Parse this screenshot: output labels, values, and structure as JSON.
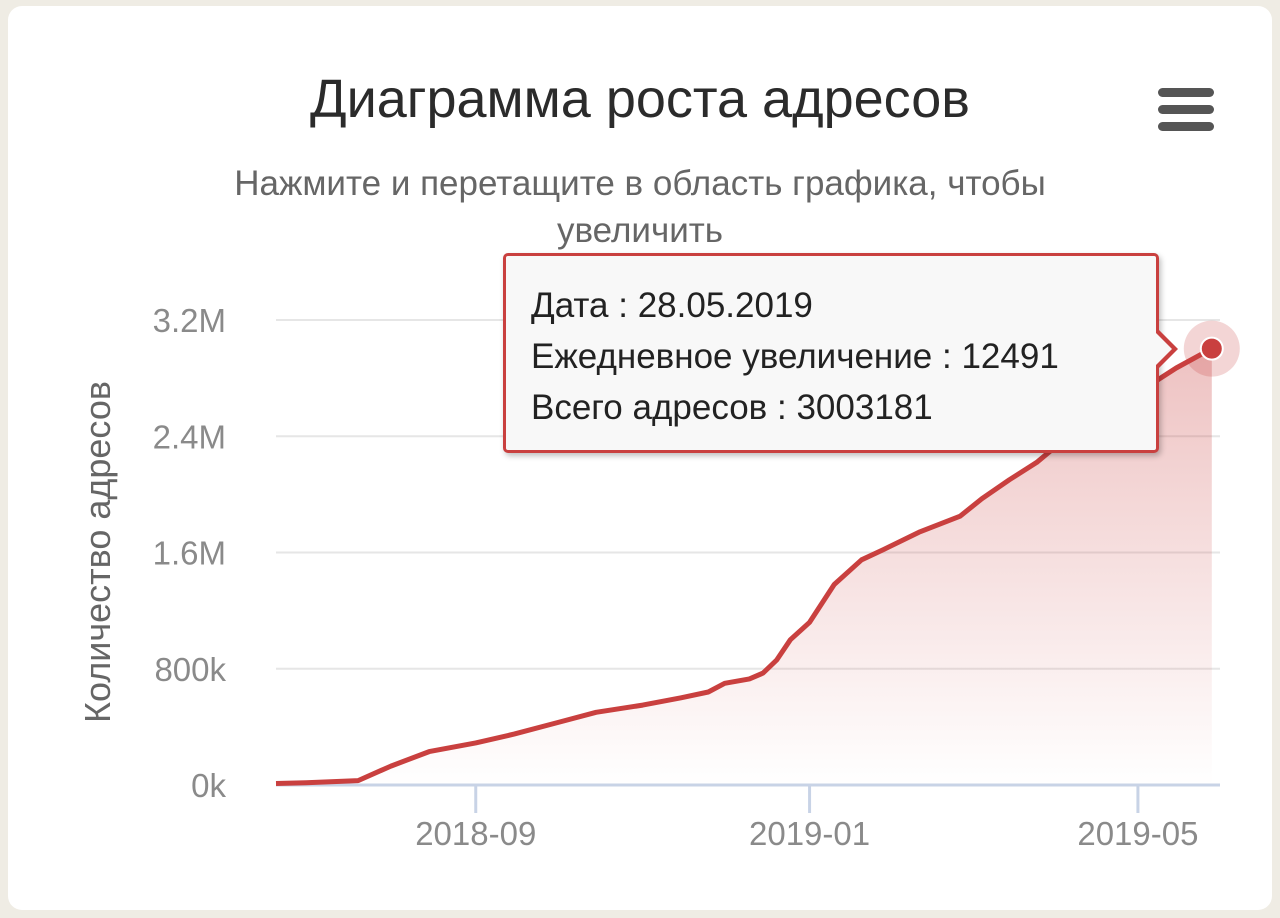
{
  "chart": {
    "menu_icon": "hamburger-menu-icon"
  },
  "tooltip": {
    "date_label": "Дата",
    "date_value": "28.05.2019",
    "daily_label": "Ежедневное увеличение",
    "daily_value": "12491",
    "total_label": "Всего адресов",
    "total_value": "3003181"
  },
  "colors": {
    "series": "#c9403f",
    "grid": "#e6e6e6",
    "axis": "#c8d3e6"
  },
  "chart_data": {
    "type": "area",
    "title": "Диаграмма роста адресов",
    "subtitle": "Нажмите и перетащите в область графика, чтобы увеличить",
    "xlabel": "",
    "ylabel": "Количество адресов",
    "ylim": [
      0,
      3200000
    ],
    "y_ticks": [
      0,
      800000,
      1600000,
      2400000,
      3200000
    ],
    "y_tick_labels": [
      "0k",
      "800k",
      "1.6M",
      "2.4M",
      "3.2M"
    ],
    "x_ticks": [
      "2018-09-01",
      "2019-01-01",
      "2019-05-01"
    ],
    "x_tick_labels": [
      "2018-09",
      "2019-01",
      "2019-05"
    ],
    "xlim": [
      "2018-06-20",
      "2019-05-31"
    ],
    "legend": "none",
    "grid": true,
    "series": [
      {
        "x": [
          "2018-06-20",
          "2018-07-01",
          "2018-07-20",
          "2018-08-01",
          "2018-08-15",
          "2018-09-01",
          "2018-09-15",
          "2018-10-01",
          "2018-10-15",
          "2018-11-01",
          "2018-11-15",
          "2018-11-25",
          "2018-12-01",
          "2018-12-10",
          "2018-12-15",
          "2018-12-20",
          "2018-12-25",
          "2019-01-01",
          "2019-01-10",
          "2019-01-20",
          "2019-01-28",
          "2019-02-10",
          "2019-02-25",
          "2019-03-05",
          "2019-03-15",
          "2019-03-25",
          "2019-04-01",
          "2019-04-15",
          "2019-05-01",
          "2019-05-15",
          "2019-05-28"
        ],
        "y": [
          10000,
          15000,
          30000,
          130000,
          230000,
          290000,
          350000,
          430000,
          500000,
          550000,
          600000,
          640000,
          700000,
          730000,
          770000,
          860000,
          1000000,
          1120000,
          1380000,
          1550000,
          1620000,
          1740000,
          1850000,
          1970000,
          2100000,
          2220000,
          2330000,
          2520000,
          2700000,
          2870000,
          3003181
        ]
      }
    ],
    "highlight": {
      "x": "2019-05-28",
      "y": 3003181
    }
  }
}
